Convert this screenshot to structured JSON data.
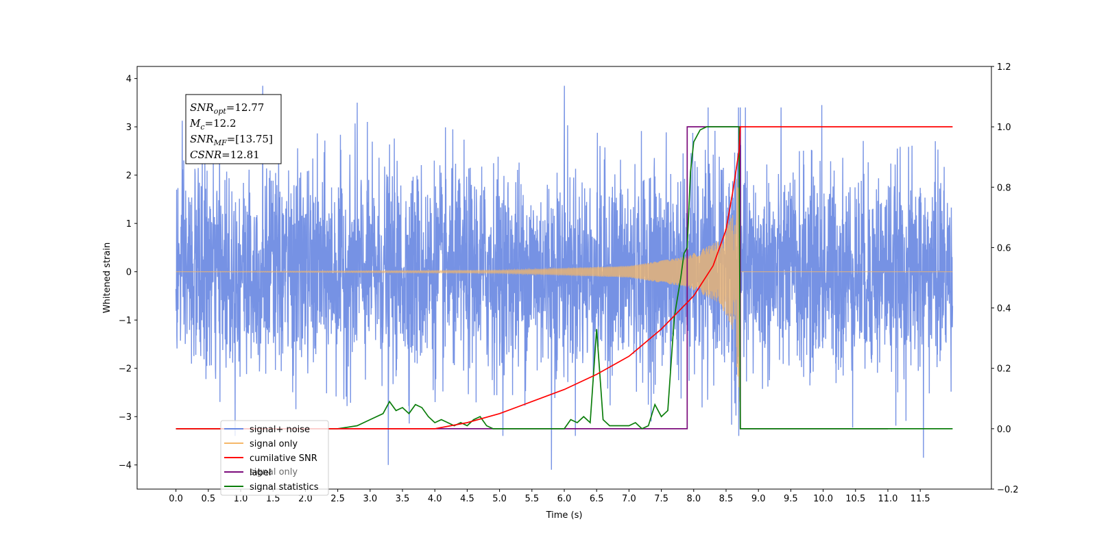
{
  "chart_data": {
    "type": "line",
    "xlabel": "Time (s)",
    "ylabel": "Whitened strain",
    "xlim": [
      -0.6,
      12.6
    ],
    "ylim": [
      -4.5,
      4.25
    ],
    "y2lim": [
      -0.2,
      1.2
    ],
    "grid": false,
    "legend_position": "lower-left",
    "xticks": [
      "0.0",
      "0.5",
      "1.0",
      "1.5",
      "2.0",
      "2.5",
      "3.0",
      "3.5",
      "4.0",
      "4.5",
      "5.0",
      "5.5",
      "6.0",
      "6.5",
      "7.0",
      "7.5",
      "8.0",
      "8.5",
      "9.0",
      "9.5",
      "10.0",
      "10.5",
      "11.0",
      "11.5"
    ],
    "yticks": [
      "4",
      "3",
      "2",
      "1",
      "0",
      "−1",
      "−2",
      "−3",
      "−4"
    ],
    "y2ticks": [
      "1.2",
      "1.0",
      "0.8",
      "0.6",
      "0.4",
      "0.2",
      "0.0",
      "−0.2"
    ],
    "annotations": {
      "snr_opt_main": "SNR",
      "snr_opt_sub": "opt",
      "snr_opt_value": "=12.77",
      "mc_main": "M",
      "mc_sub": "c",
      "mc_value": "=12.2",
      "snr_mf_main": "SNR",
      "snr_mf_sub": "MF",
      "snr_mf_value": "=[13.75]",
      "csnr_main": "CSNR",
      "csnr_value": "=12.81"
    },
    "series": [
      {
        "name": "signal+ noise",
        "color": "#6a89e2",
        "axis": "left",
        "description_type": "noise",
        "x_range": [
          0.0,
          12.0
        ],
        "envelope_typical": [
          -2.2,
          2.2
        ],
        "peaks": [
          [
            1.34,
            3.85
          ],
          [
            6.0,
            3.85
          ],
          [
            5.8,
            -4.1
          ],
          [
            11.55,
            -3.85
          ],
          [
            9.98,
            3.45
          ],
          [
            2.8,
            3.5
          ],
          [
            3.28,
            -4.0
          ]
        ]
      },
      {
        "name": "signal only",
        "color": "#f5b768",
        "axis": "left",
        "description_type": "chirp",
        "x_range": [
          0.0,
          12.0
        ],
        "merger_time": 8.72,
        "amplitude_at": [
          [
            0.0,
            0.0
          ],
          [
            5.0,
            0.03
          ],
          [
            7.0,
            0.12
          ],
          [
            7.9,
            0.32
          ],
          [
            8.4,
            0.65
          ],
          [
            8.6,
            1.2
          ],
          [
            8.7,
            2.4
          ],
          [
            8.72,
            3.0
          ]
        ]
      },
      {
        "name": "cumilative SNR",
        "color": "#ff0000",
        "axis": "right",
        "x": [
          0.0,
          4.0,
          4.5,
          5.0,
          5.5,
          6.0,
          6.5,
          7.0,
          7.5,
          8.0,
          8.3,
          8.5,
          8.6,
          8.65,
          8.7,
          8.72,
          8.75,
          12.0
        ],
        "y": [
          0.0,
          0.0,
          0.02,
          0.05,
          0.09,
          0.13,
          0.18,
          0.24,
          0.33,
          0.44,
          0.54,
          0.66,
          0.78,
          0.85,
          0.92,
          1.0,
          1.0,
          1.0
        ]
      },
      {
        "name": "label",
        "color": "#7b0a7b",
        "axis": "right",
        "x": [
          0.0,
          7.9,
          7.9,
          8.72,
          8.72,
          8.75,
          11.0
        ],
        "y": [
          0.0,
          0.0,
          1.0,
          1.0,
          0.0,
          0.0,
          0.0
        ]
      },
      {
        "name": "signal statistics",
        "color": "#0a7d0a",
        "axis": "right",
        "x": [
          0.0,
          2.5,
          2.8,
          3.0,
          3.2,
          3.3,
          3.4,
          3.5,
          3.6,
          3.7,
          3.8,
          3.9,
          4.0,
          4.1,
          4.2,
          4.3,
          4.4,
          4.5,
          4.6,
          4.7,
          4.8,
          4.9,
          5.0,
          6.0,
          6.1,
          6.2,
          6.3,
          6.4,
          6.5,
          6.6,
          6.7,
          6.8,
          7.0,
          7.1,
          7.15,
          7.2,
          7.3,
          7.4,
          7.5,
          7.6,
          7.7,
          7.8,
          7.85,
          7.9,
          7.95,
          8.0,
          8.1,
          8.2,
          8.3,
          8.5,
          8.7,
          8.72,
          8.75,
          12.0
        ],
        "y": [
          0.0,
          0.0,
          0.01,
          0.03,
          0.05,
          0.09,
          0.06,
          0.07,
          0.05,
          0.08,
          0.07,
          0.04,
          0.02,
          0.03,
          0.02,
          0.01,
          0.02,
          0.01,
          0.03,
          0.04,
          0.01,
          0.0,
          0.0,
          0.0,
          0.03,
          0.02,
          0.04,
          0.02,
          0.33,
          0.03,
          0.01,
          0.01,
          0.01,
          0.02,
          0.01,
          0.0,
          0.01,
          0.08,
          0.04,
          0.06,
          0.37,
          0.5,
          0.58,
          0.6,
          0.85,
          0.95,
          0.99,
          1.0,
          1.0,
          1.0,
          1.0,
          0.0,
          0.0,
          0.0
        ]
      }
    ],
    "legend": [
      {
        "label": "signal+ noise",
        "color": "#6a89e2"
      },
      {
        "label": "signal only",
        "color": "#f5b768"
      },
      {
        "label": "cumilative SNR",
        "color": "#ff0000"
      },
      {
        "label": "label",
        "color": "#7b0a7b"
      },
      {
        "label": "signal statistics",
        "color": "#0a7d0a"
      }
    ],
    "hidden_text": "signal only"
  }
}
